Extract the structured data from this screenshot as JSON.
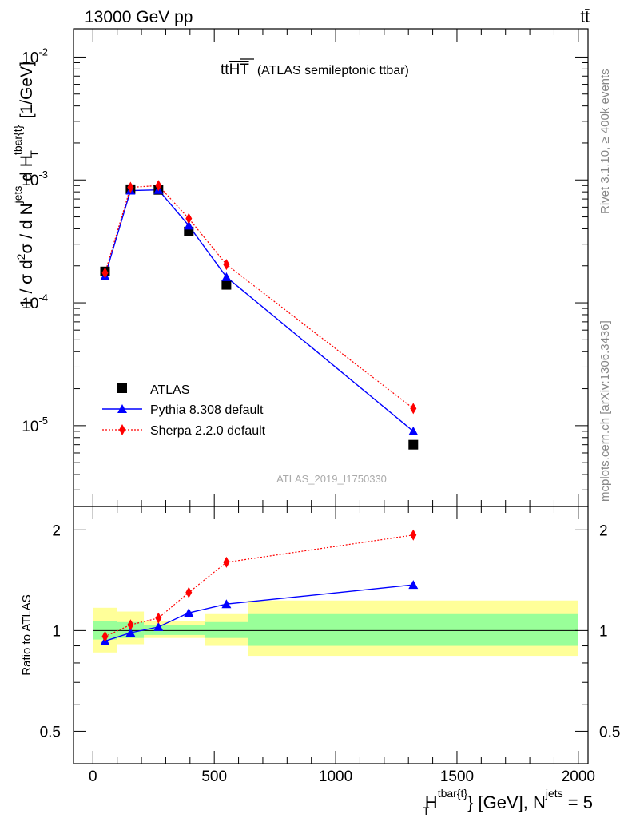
{
  "header": {
    "left": "13000 GeV pp",
    "right": "tt̄"
  },
  "side_labels": {
    "rivet": "Rivet 3.1.10, ≥ 400k events",
    "mcplots": "mcplots.cern.ch [arXiv:1306.3436]"
  },
  "chart_data": [
    {
      "type": "scatter",
      "title": "ttHT (ATLAS semileptonic ttbar)",
      "title_main": "tt",
      "title_overline": "HT",
      "title_sub": "(ATLAS semileptonic ttbar)",
      "watermark": "ATLAS_2019_I1750330",
      "ylabel": "1 / σ d²σ / d N^jets d H_T^tbar{t} [1/GeV]",
      "yscale": "log",
      "ylim": [
        2.2e-06,
        0.017
      ],
      "xlim": [
        -80,
        2040
      ],
      "y_tick_labels": [
        "10^-5",
        "10^-4",
        "10^-3",
        "10^-2"
      ],
      "legend_position": "bottom-left",
      "series": [
        {
          "name": "ATLAS",
          "color": "#000000",
          "marker": "square",
          "x": [
            50,
            155,
            270,
            395,
            550,
            1320
          ],
          "y": [
            0.00018,
            0.00084,
            0.00083,
            0.00038,
            0.00014,
            7e-06
          ]
        },
        {
          "name": "Pythia 8.308 default",
          "color": "#0000ff",
          "marker": "triangle",
          "line": "solid",
          "x": [
            50,
            155,
            270,
            395,
            550,
            1320
          ],
          "y": [
            0.000165,
            0.00082,
            0.00083,
            0.000425,
            0.000162,
            9e-06
          ]
        },
        {
          "name": "Sherpa 2.2.0 default",
          "color": "#ff0000",
          "marker": "diamond",
          "line": "dotted",
          "x": [
            50,
            155,
            270,
            395,
            550,
            1320
          ],
          "y": [
            0.000175,
            0.00087,
            0.0009,
            0.000485,
            0.000205,
            1.38e-05
          ]
        }
      ]
    },
    {
      "type": "scatter",
      "ylabel": "Ratio to ATLAS",
      "xlabel": "H_T^tbar{t} [GeV], N^jets = 5",
      "xlim": [
        -80,
        2040
      ],
      "ylim": [
        0.4,
        2.35
      ],
      "yscale": "log",
      "x_tick_labels": [
        "0",
        "500",
        "1000",
        "1500",
        "2000"
      ],
      "y_tick_labels": [
        "0.5",
        "1",
        "2"
      ],
      "bands": {
        "edges": [
          0,
          100,
          210,
          330,
          460,
          640,
          2000
        ],
        "green_lo": [
          0.94,
          0.95,
          0.97,
          0.97,
          0.95,
          0.9
        ],
        "green_hi": [
          1.07,
          1.06,
          1.04,
          1.04,
          1.06,
          1.12
        ],
        "yellow_lo": [
          0.86,
          0.91,
          0.95,
          0.95,
          0.9,
          0.84
        ],
        "yellow_hi": [
          1.17,
          1.14,
          1.07,
          1.07,
          1.12,
          1.23
        ]
      },
      "series": [
        {
          "name": "Pythia 8.308 default",
          "color": "#0000ff",
          "marker": "triangle",
          "line": "solid",
          "x": [
            50,
            155,
            270,
            395,
            550,
            1320
          ],
          "y": [
            0.93,
            0.985,
            1.025,
            1.13,
            1.2,
            1.37
          ]
        },
        {
          "name": "Sherpa 2.2.0 default",
          "color": "#ff0000",
          "marker": "diamond",
          "line": "dotted",
          "x": [
            50,
            155,
            270,
            395,
            550,
            1320
          ],
          "y": [
            0.96,
            1.04,
            1.09,
            1.3,
            1.6,
            1.93
          ]
        }
      ]
    }
  ]
}
